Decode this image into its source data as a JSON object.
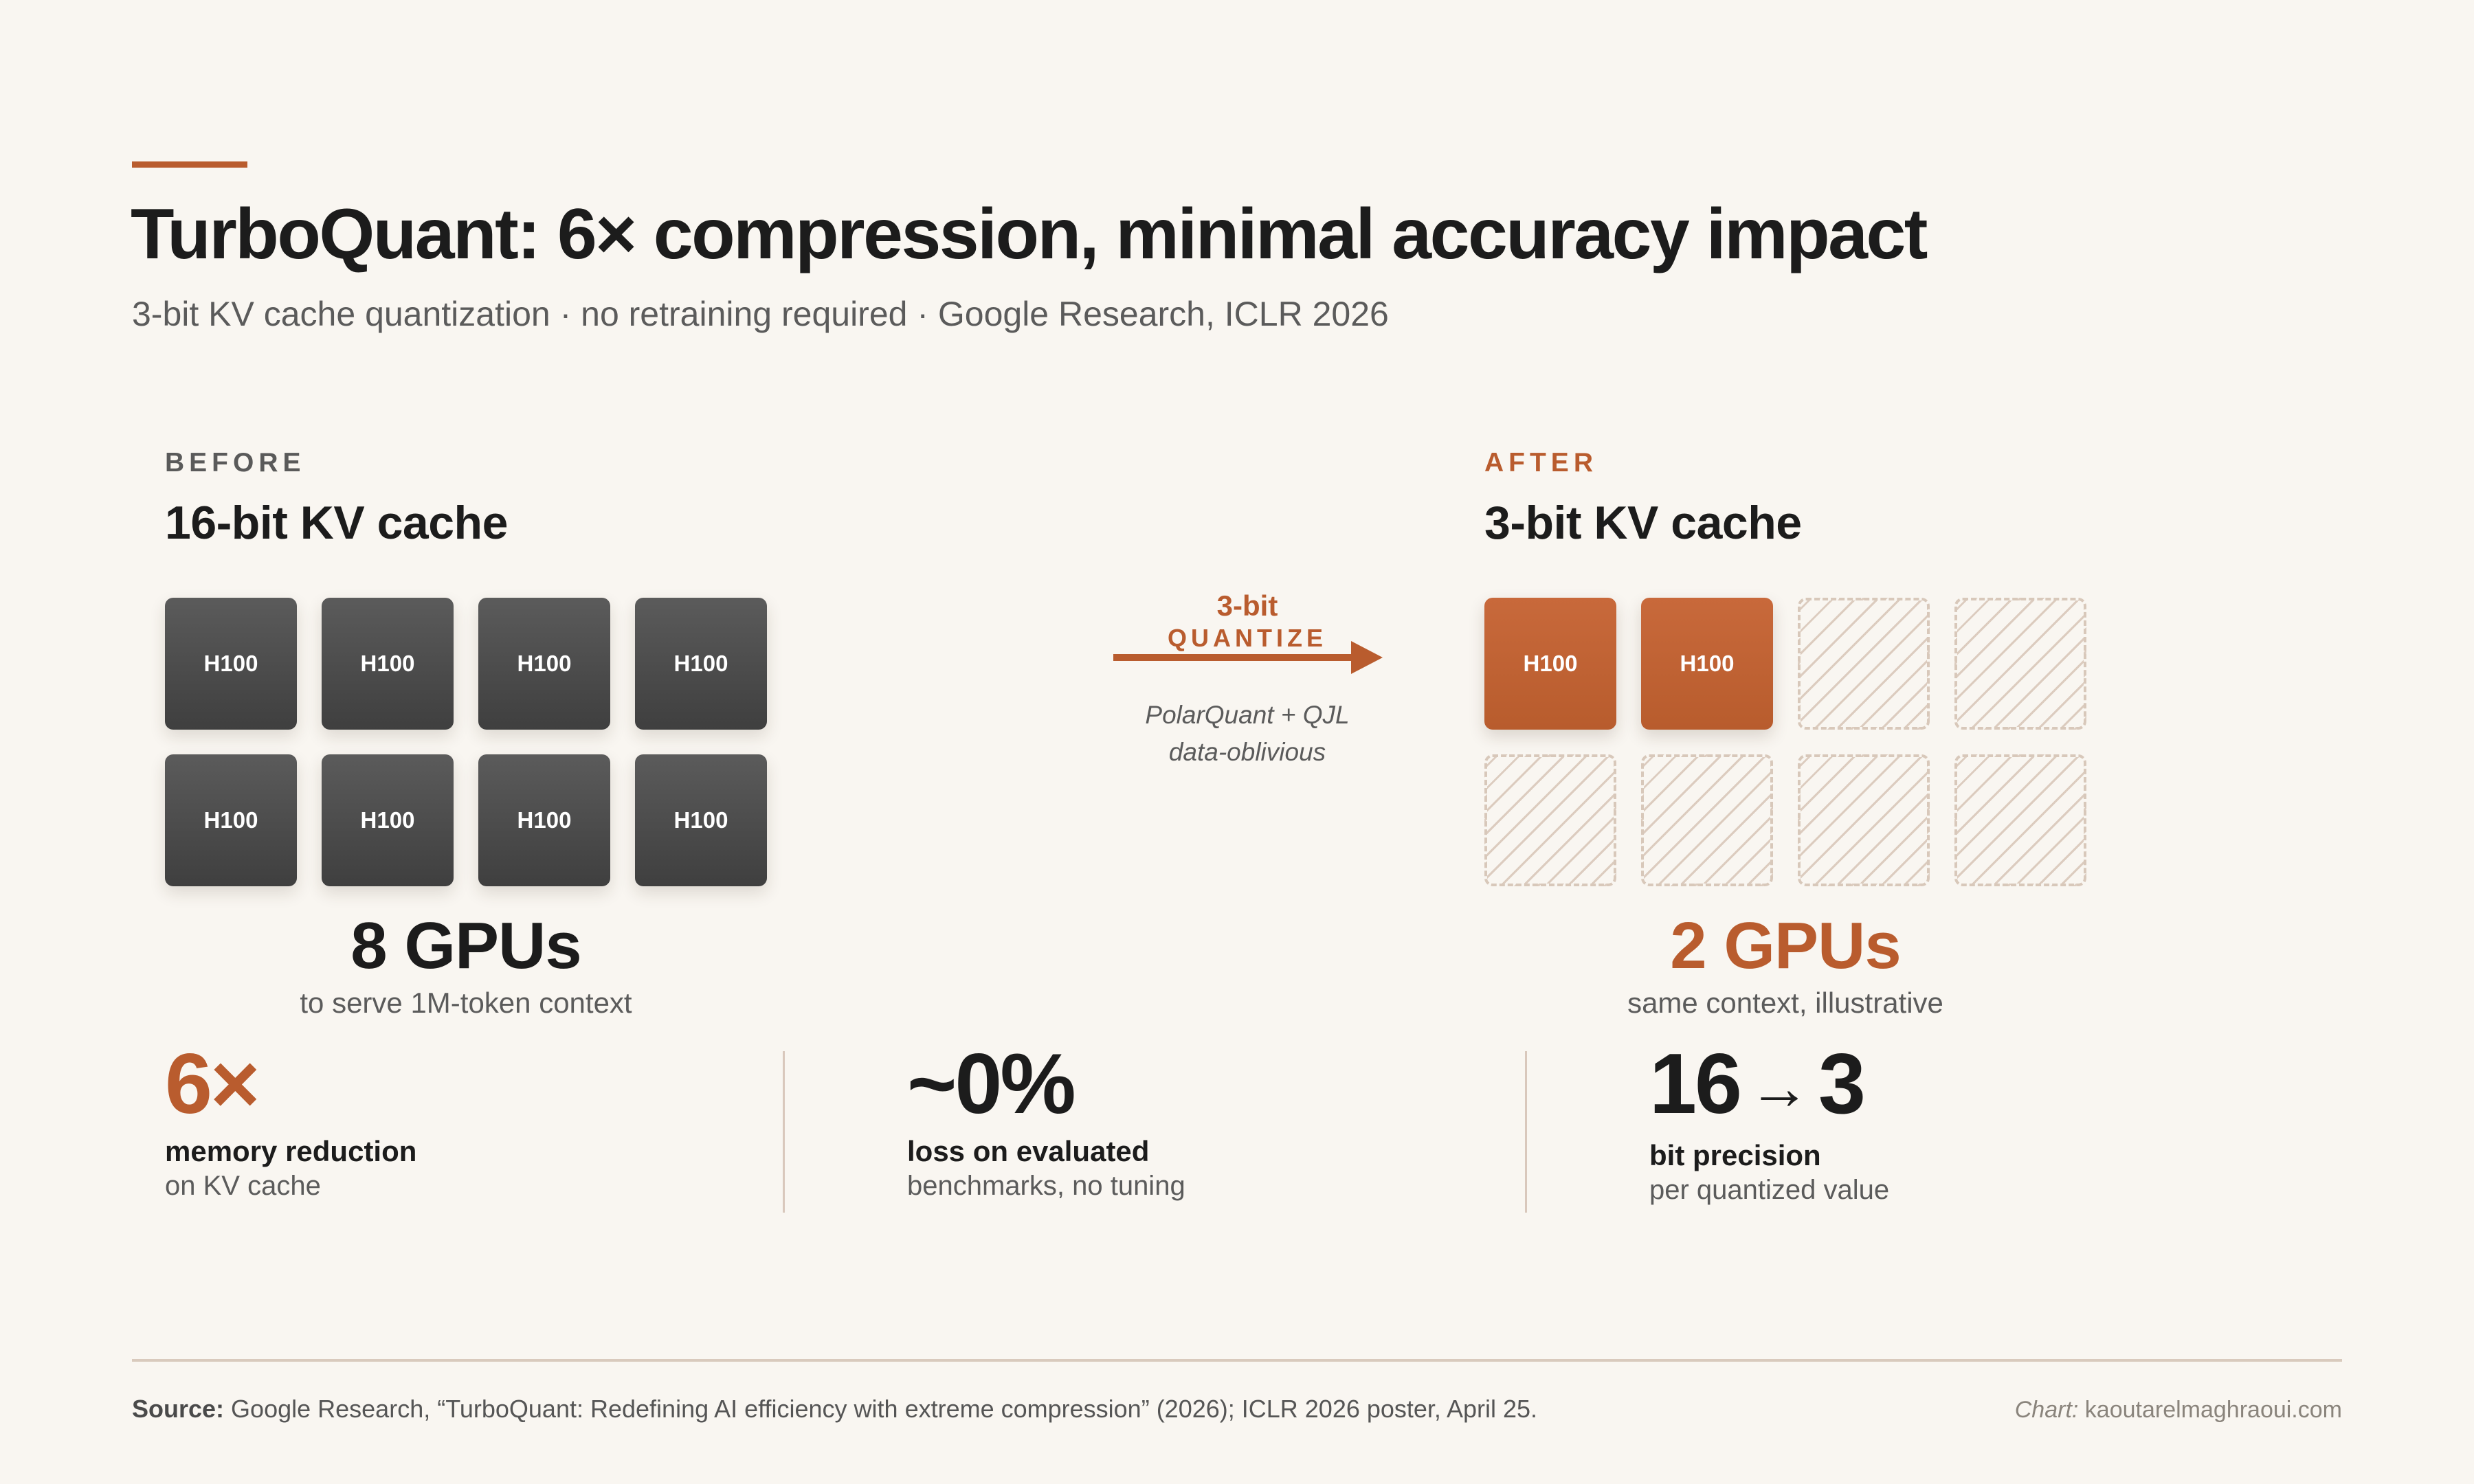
{
  "header": {
    "title": "TurboQuant: 6× compression, minimal accuracy impact",
    "subtitle": "3-bit KV cache quantization · no retraining required · Google Research, ICLR 2026"
  },
  "colors": {
    "accent": "#b95c2e",
    "background": "#f9f6f1",
    "dark_tile": "#4a4a4a",
    "text": "#1c1c1c",
    "muted": "#5b5b5b",
    "rule": "#d9cabd"
  },
  "before": {
    "eyebrow": "BEFORE",
    "title": "16-bit KV cache",
    "tiles": [
      "H100",
      "H100",
      "H100",
      "H100",
      "H100",
      "H100",
      "H100",
      "H100"
    ],
    "count": "8 GPUs",
    "count_sub": "to serve 1M-token context"
  },
  "transition": {
    "label_top": "3-bit",
    "label_bottom": "QUANTIZE",
    "note_line1": "PolarQuant + QJL",
    "note_line2": "data-oblivious"
  },
  "after": {
    "eyebrow": "AFTER",
    "title": "3-bit KV cache",
    "tiles": [
      "H100",
      "H100",
      "",
      "",
      "",
      "",
      "",
      ""
    ],
    "count": "2 GPUs",
    "count_sub": "same context, illustrative"
  },
  "stats": [
    {
      "value": "6×",
      "label": "memory reduction",
      "sub": "on KV cache"
    },
    {
      "value": "~0%",
      "label": "loss on evaluated",
      "sub": "benchmarks, no tuning"
    },
    {
      "value_from": "16",
      "value_arrow": "→",
      "value_to": "3",
      "label": "bit precision",
      "sub": "per quantized value"
    }
  ],
  "footer": {
    "source_label": "Source:",
    "source_text": " Google Research, “TurboQuant: Redefining AI efficiency with extreme compression” (2026); ICLR 2026 poster, April 25.",
    "credit_label": "Chart:",
    "credit_text": " kaoutarelmaghraoui.com"
  },
  "chart_data": {
    "type": "table",
    "title": "TurboQuant: 6× compression, minimal accuracy impact",
    "subtitle": "3-bit KV cache quantization · no retraining required · Google Research, ICLR 2026",
    "categories": [
      "Before (16-bit KV cache)",
      "After (3-bit KV cache)"
    ],
    "series": [
      {
        "name": "GPUs (H100) to serve 1M-token context",
        "values": [
          8,
          2
        ]
      },
      {
        "name": "KV cache bit precision",
        "values": [
          16,
          3
        ]
      }
    ],
    "annotations": [
      "3-bit QUANTIZE: PolarQuant + QJL, data-oblivious",
      "6× memory reduction on KV cache",
      "~0% loss on evaluated benchmarks, no tuning",
      "16→3 bit precision per quantized value",
      "2 GPUs: same context, illustrative"
    ],
    "grid": false,
    "legend": "none"
  }
}
